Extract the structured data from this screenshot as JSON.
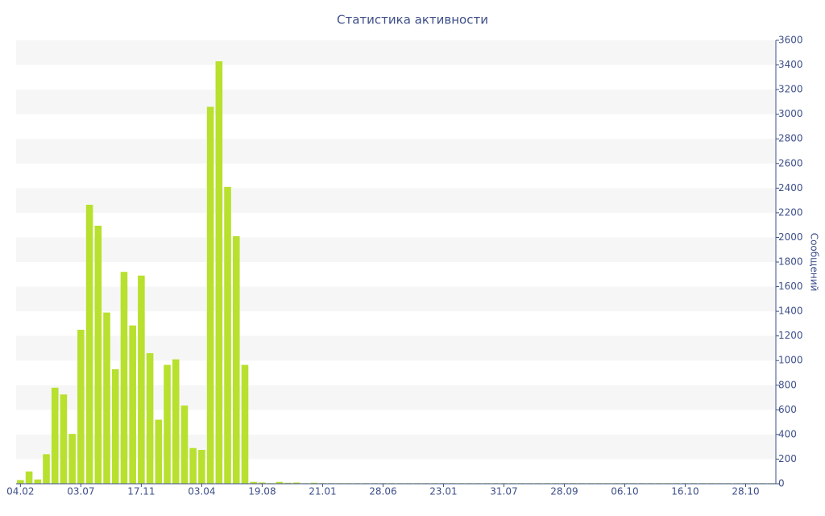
{
  "chart_data": {
    "type": "bar",
    "title": "Статистика активности",
    "y_label": "Сообщений",
    "categories": [
      "04.02",
      null,
      null,
      null,
      null,
      null,
      null,
      "03.07",
      null,
      null,
      null,
      null,
      null,
      null,
      "17.11",
      null,
      null,
      null,
      null,
      null,
      null,
      "03.04",
      null,
      null,
      null,
      null,
      null,
      null,
      "19.08",
      null,
      null,
      null,
      null,
      null,
      null,
      "21.01",
      null,
      null,
      null,
      null,
      null,
      null,
      "28.06",
      null,
      null,
      null,
      null,
      null,
      null,
      "23.01",
      null,
      null,
      null,
      null,
      null,
      null,
      "31.07",
      null,
      null,
      null,
      null,
      null,
      null,
      "28.09",
      null,
      null,
      null,
      null,
      null,
      null,
      "06.10",
      null,
      null,
      null,
      null,
      null,
      null,
      "16.10",
      null,
      null,
      null,
      null,
      null,
      null,
      "28.10",
      null,
      null,
      null
    ],
    "values": [
      30,
      100,
      35,
      240,
      780,
      725,
      405,
      1250,
      2265,
      2095,
      1390,
      930,
      1720,
      1285,
      1690,
      1060,
      520,
      965,
      1010,
      635,
      290,
      275,
      3060,
      3430,
      2410,
      2010,
      965,
      15,
      10,
      5,
      15,
      8,
      10,
      5,
      8,
      5,
      5,
      5,
      5,
      5,
      5,
      5,
      5,
      5,
      5,
      5,
      5,
      5,
      5,
      5,
      5,
      5,
      5,
      5,
      5,
      5,
      5,
      5,
      5,
      5,
      5,
      5,
      5,
      5,
      5,
      5,
      5,
      5,
      5,
      5,
      5,
      5,
      5,
      5,
      5,
      5,
      5,
      5,
      5,
      5,
      5,
      5,
      5,
      5,
      5,
      5,
      5,
      5
    ],
    "color": "#b8e02e",
    "ylim": [
      0,
      3600
    ],
    "yticks": [
      0,
      200,
      400,
      600,
      800,
      1000,
      1200,
      1400,
      1600,
      1800,
      2000,
      2200,
      2400,
      2600,
      2800,
      3000,
      3200,
      3400,
      3600
    ],
    "grid": true
  }
}
